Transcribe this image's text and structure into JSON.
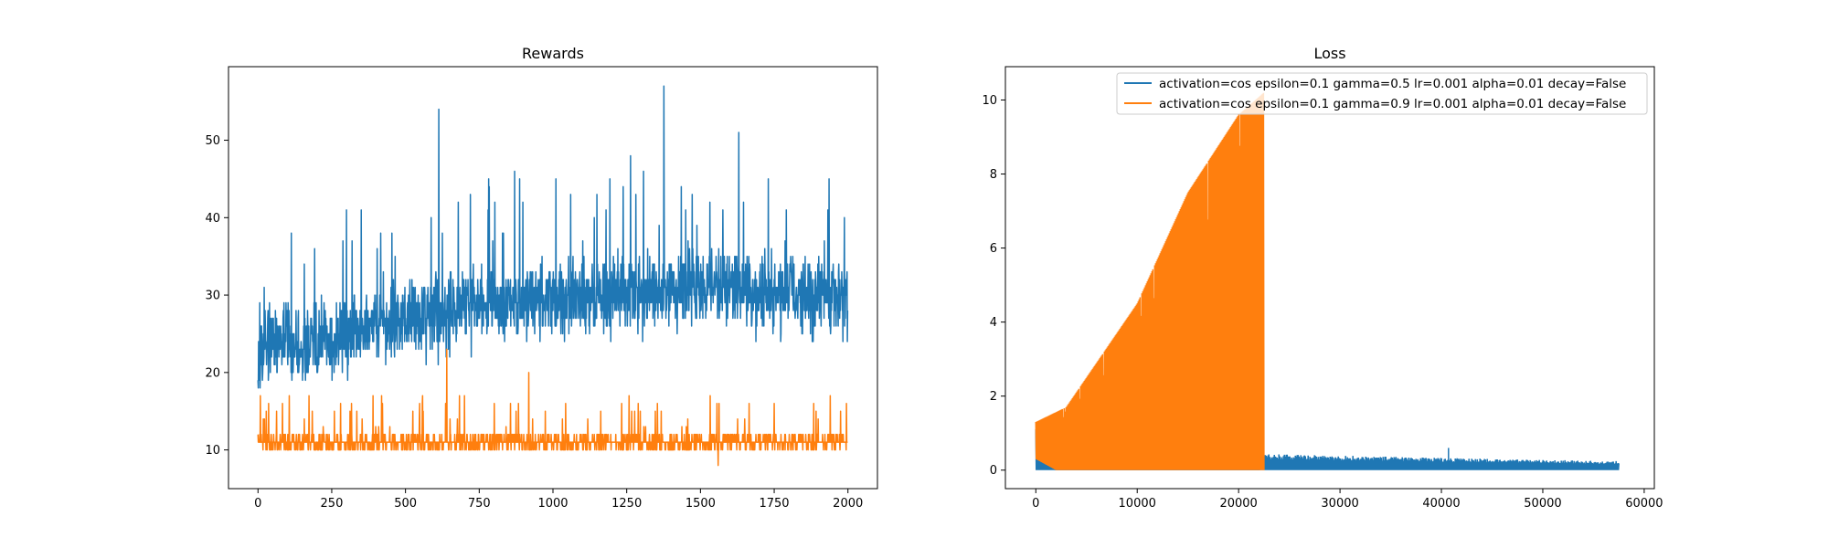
{
  "colors": {
    "series_1": "#1f77b4",
    "series_2": "#ff7f0e",
    "axes": "#000000",
    "legend_border": "#cccccc",
    "background": "#ffffff"
  },
  "chart_data": [
    {
      "type": "line",
      "title": "Rewards",
      "xlabel": "",
      "ylabel": "",
      "xlim": [
        -100,
        2100
      ],
      "ylim": [
        5,
        59.5
      ],
      "xticks": [
        0,
        250,
        500,
        750,
        1000,
        1250,
        1500,
        1750,
        2000
      ],
      "yticks": [
        10,
        20,
        30,
        40,
        50
      ],
      "grid": false,
      "legend": null,
      "series": [
        {
          "color": "#1f77b4",
          "n_points": 2000,
          "baseline": [
            [
              0,
              23
            ],
            [
              250,
              24
            ],
            [
              500,
              27
            ],
            [
              750,
              29
            ],
            [
              1000,
              29.5
            ],
            [
              1250,
              30
            ],
            [
              1500,
              31
            ],
            [
              1750,
              30
            ],
            [
              2000,
              30
            ]
          ],
          "min": 15,
          "max": 57,
          "spikes": [
            [
              613,
              54
            ],
            [
              1376,
              57
            ],
            [
              1630,
              51
            ],
            [
              1263,
              48
            ],
            [
              300,
              41
            ],
            [
              350,
              41
            ],
            [
              870,
              46
            ],
            [
              1730,
              45
            ]
          ]
        },
        {
          "color": "#ff7f0e",
          "n_points": 2000,
          "baseline": [
            [
              0,
              11
            ],
            [
              2000,
              11
            ]
          ],
          "min": 8,
          "max": 23,
          "spikes": [
            [
              640,
              23
            ],
            [
              918,
              20
            ],
            [
              1750,
              16
            ],
            [
              1560,
              8
            ]
          ]
        }
      ]
    },
    {
      "type": "line",
      "title": "Loss",
      "xlabel": "",
      "ylabel": "",
      "xlim": [
        -3000,
        61000
      ],
      "ylim": [
        -0.5,
        10.9
      ],
      "xticks": [
        0,
        10000,
        20000,
        30000,
        40000,
        50000,
        60000
      ],
      "yticks": [
        0,
        2,
        4,
        6,
        8,
        10
      ],
      "grid": false,
      "legend": "top-right",
      "series": [
        {
          "name": "activation=cos epsilon=0.1 gamma=0.5 lr=0.001 alpha=0.01 decay=False",
          "color": "#1f77b4",
          "x_range": [
            0,
            57500
          ],
          "envelope_low": 0,
          "envelope_high": [
            [
              0,
              1.1
            ],
            [
              2000,
              0.05
            ],
            [
              22000,
              0.05
            ],
            [
              22500,
              0.4
            ],
            [
              40000,
              0.3
            ],
            [
              57500,
              0.22
            ]
          ],
          "spikes": [
            [
              40700,
              0.6
            ]
          ]
        },
        {
          "name": "activation=cos epsilon=0.1 gamma=0.9 lr=0.001 alpha=0.01 decay=False",
          "color": "#ff7f0e",
          "x_range": [
            0,
            22500
          ],
          "envelope_low": [
            [
              0,
              0.3
            ],
            [
              2000,
              0
            ],
            [
              22500,
              0
            ]
          ],
          "envelope_high": [
            [
              0,
              1.3
            ],
            [
              3000,
              1.7
            ],
            [
              10000,
              4.5
            ],
            [
              15000,
              7.5
            ],
            [
              20000,
              9.6
            ],
            [
              22500,
              10.2
            ]
          ],
          "spikes": []
        }
      ]
    }
  ]
}
